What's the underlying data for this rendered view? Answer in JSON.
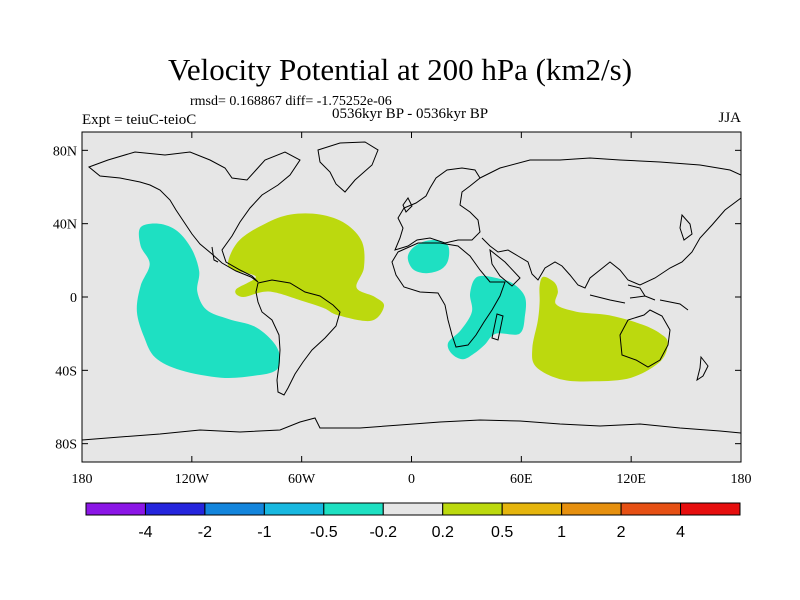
{
  "title": "Velocity Potential at 200 hPa (km2/s)",
  "stats": "rmsd= 0.168867 diff= -1.75252e-06",
  "left_label": "Expt = teiuC-teioC",
  "center_label": "0536kyr BP - 0536kyr BP",
  "right_label": "JJA",
  "chart_data": {
    "type": "heatmap",
    "title": "Velocity Potential at 200 hPa (km2/s)",
    "projection": "cylindrical equidistant",
    "xlim": [
      -180,
      180
    ],
    "ylim": [
      -90,
      90
    ],
    "x_ticks": [
      {
        "value": -180,
        "label": "180"
      },
      {
        "value": -120,
        "label": "120W"
      },
      {
        "value": -60,
        "label": "60W"
      },
      {
        "value": 0,
        "label": "0"
      },
      {
        "value": 60,
        "label": "60E"
      },
      {
        "value": 120,
        "label": "120E"
      },
      {
        "value": 180,
        "label": "180"
      }
    ],
    "y_ticks": [
      {
        "value": 80,
        "label": "80N"
      },
      {
        "value": 40,
        "label": "40N"
      },
      {
        "value": 0,
        "label": "0"
      },
      {
        "value": -40,
        "label": "40S"
      },
      {
        "value": -80,
        "label": "80S"
      }
    ],
    "colorbar": {
      "bins": [
        {
          "color": "#8b16e6"
        },
        {
          "color": "#2525dd"
        },
        {
          "color": "#1385dc"
        },
        {
          "color": "#18b8e0"
        },
        {
          "color": "#1ee0c2"
        },
        {
          "color": "#e6e6e6"
        },
        {
          "color": "#bcd90e"
        },
        {
          "color": "#e5b50d"
        },
        {
          "color": "#e6900f"
        },
        {
          "color": "#e65014"
        },
        {
          "color": "#e60e0e"
        }
      ],
      "labels": [
        "-4",
        "-2",
        "-1",
        "-0.5",
        "-0.2",
        "0.2",
        "0.5",
        "1",
        "2",
        "4"
      ]
    },
    "anomaly_regions": [
      {
        "name": "central-pacific-negative",
        "category": "-0.5 to -0.2",
        "color": "#1ee0c2",
        "outline": [
          [
            -148,
            38
          ],
          [
            -138,
            40
          ],
          [
            -128,
            36
          ],
          [
            -120,
            26
          ],
          [
            -116,
            14
          ],
          [
            -117,
            3
          ],
          [
            -112,
            -7
          ],
          [
            -100,
            -12
          ],
          [
            -86,
            -16
          ],
          [
            -76,
            -24
          ],
          [
            -72,
            -32
          ],
          [
            -74,
            -40
          ],
          [
            -86,
            -43
          ],
          [
            -104,
            -44
          ],
          [
            -126,
            -40
          ],
          [
            -140,
            -33
          ],
          [
            -146,
            -22
          ],
          [
            -150,
            -8
          ],
          [
            -148,
            6
          ],
          [
            -143,
            18
          ],
          [
            -148,
            28
          ]
        ]
      },
      {
        "name": "north-africa-negative",
        "category": "-0.5 to -0.2",
        "color": "#1ee0c2",
        "outline": [
          [
            0,
            26
          ],
          [
            6,
            30
          ],
          [
            14,
            31
          ],
          [
            20,
            28
          ],
          [
            20,
            20
          ],
          [
            16,
            15
          ],
          [
            8,
            13
          ],
          [
            1,
            15
          ],
          [
            -2,
            21
          ]
        ]
      },
      {
        "name": "south-africa-negative",
        "category": "-0.5 to -0.2",
        "color": "#1ee0c2",
        "outline": [
          [
            36,
            11
          ],
          [
            48,
            10
          ],
          [
            56,
            7
          ],
          [
            62,
            0
          ],
          [
            62,
            -10
          ],
          [
            59,
            -20
          ],
          [
            46,
            -20
          ],
          [
            40,
            -26
          ],
          [
            34,
            -31
          ],
          [
            28,
            -34
          ],
          [
            22,
            -31
          ],
          [
            20,
            -25
          ],
          [
            27,
            -18
          ],
          [
            33,
            -8
          ],
          [
            32,
            2
          ]
        ]
      },
      {
        "name": "atlantic-positive",
        "category": "0.2 to 0.5",
        "color": "#bcd90e",
        "outline": [
          [
            -100,
            20
          ],
          [
            -94,
            31
          ],
          [
            -80,
            40
          ],
          [
            -66,
            45
          ],
          [
            -50,
            45
          ],
          [
            -36,
            40
          ],
          [
            -27,
            30
          ],
          [
            -26,
            16
          ],
          [
            -30,
            5
          ],
          [
            -20,
            0
          ],
          [
            -15,
            -5
          ],
          [
            -22,
            -13
          ],
          [
            -40,
            -10
          ],
          [
            -48,
            -6
          ],
          [
            -60,
            -2
          ],
          [
            -78,
            3
          ],
          [
            -92,
            0
          ],
          [
            -96,
            4
          ],
          [
            -85,
            11
          ],
          [
            -98,
            15
          ]
        ]
      },
      {
        "name": "indian-ocean-positive",
        "category": "0.2 to 0.5",
        "color": "#bcd90e",
        "outline": [
          [
            72,
            11
          ],
          [
            78,
            8
          ],
          [
            80,
            3
          ],
          [
            79,
            -4
          ],
          [
            90,
            -8
          ],
          [
            108,
            -10
          ],
          [
            126,
            -15
          ],
          [
            136,
            -20
          ],
          [
            140,
            -25
          ],
          [
            136,
            -35
          ],
          [
            120,
            -44
          ],
          [
            100,
            -46
          ],
          [
            82,
            -45
          ],
          [
            68,
            -38
          ],
          [
            66,
            -28
          ],
          [
            69,
            -13
          ],
          [
            70,
            -3
          ],
          [
            70,
            6
          ]
        ]
      }
    ],
    "coastlines_shown": true
  }
}
